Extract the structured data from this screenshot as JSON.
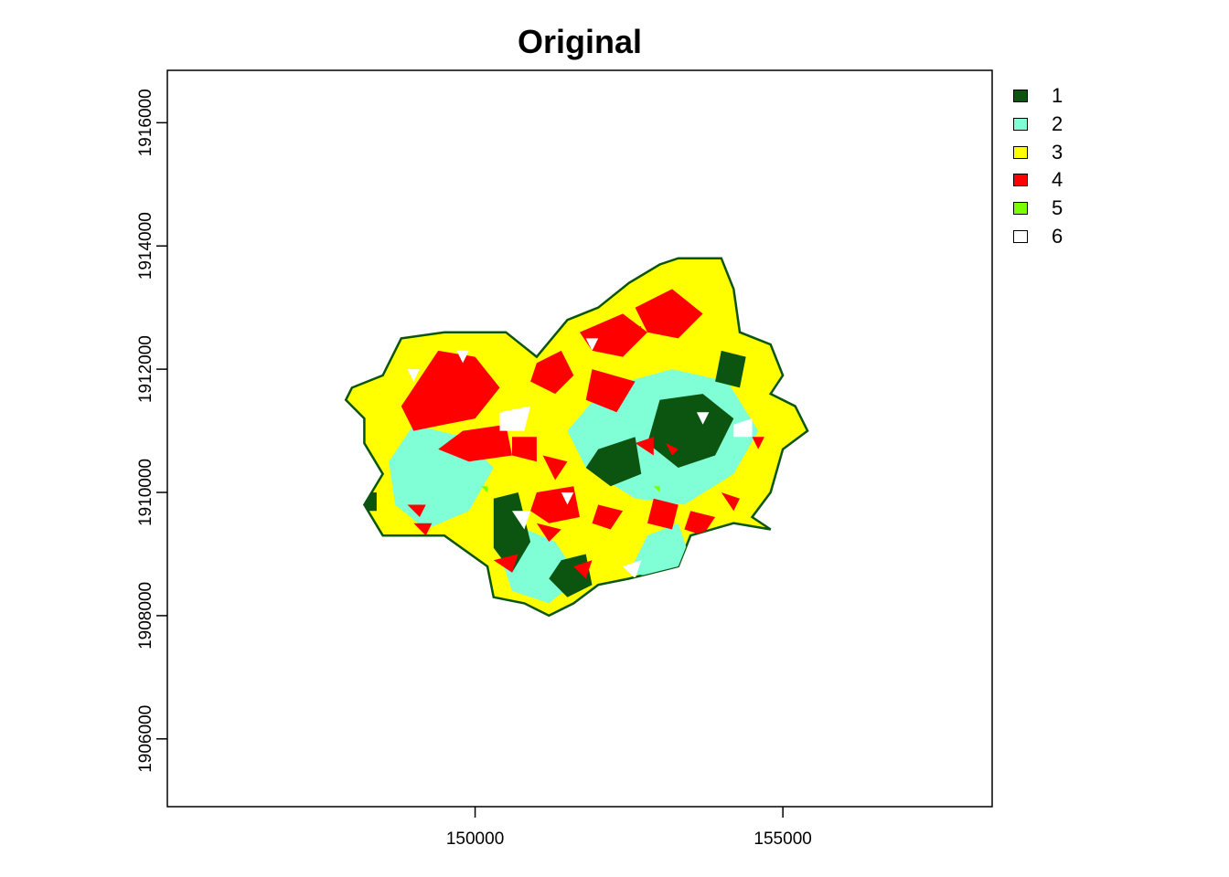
{
  "title": "Original",
  "chart_data": {
    "type": "heatmap",
    "title": "Original",
    "xlabel": "",
    "ylabel": "",
    "x_ticks": [
      150000,
      155000
    ],
    "y_ticks": [
      1906000,
      1908000,
      1910000,
      1912000,
      1914000,
      1916000
    ],
    "xlim": [
      145000,
      158400
    ],
    "ylim": [
      1904900,
      1916850
    ],
    "grid": false,
    "legend_position": "right",
    "legend": [
      {
        "label": "1",
        "color": "#0b5510"
      },
      {
        "label": "2",
        "color": "#80ffd6"
      },
      {
        "label": "3",
        "color": "#ffff00"
      },
      {
        "label": "4",
        "color": "#ff0000"
      },
      {
        "label": "5",
        "color": "#7cfc00"
      },
      {
        "label": "6",
        "color": "#ffffff"
      }
    ],
    "regions": {
      "outline": [
        [
          148000,
          1911700
        ],
        [
          148500,
          1911900
        ],
        [
          148800,
          1912500
        ],
        [
          149500,
          1912600
        ],
        [
          150500,
          1912600
        ],
        [
          151000,
          1912200
        ],
        [
          151500,
          1912800
        ],
        [
          152000,
          1913000
        ],
        [
          152500,
          1913400
        ],
        [
          153000,
          1913700
        ],
        [
          153300,
          1913800
        ],
        [
          154000,
          1913800
        ],
        [
          154200,
          1913300
        ],
        [
          154300,
          1912600
        ],
        [
          154800,
          1912400
        ],
        [
          155000,
          1911900
        ],
        [
          154800,
          1911600
        ],
        [
          155200,
          1911400
        ],
        [
          155400,
          1911000
        ],
        [
          155000,
          1910700
        ],
        [
          154800,
          1910000
        ],
        [
          154500,
          1909600
        ],
        [
          154800,
          1909400
        ],
        [
          154200,
          1909500
        ],
        [
          153500,
          1909300
        ],
        [
          153300,
          1908800
        ],
        [
          152500,
          1908600
        ],
        [
          152000,
          1908500
        ],
        [
          151600,
          1908200
        ],
        [
          151200,
          1908000
        ],
        [
          150800,
          1908200
        ],
        [
          150300,
          1908300
        ],
        [
          150200,
          1908800
        ],
        [
          149500,
          1909300
        ],
        [
          149000,
          1909300
        ],
        [
          148500,
          1909300
        ],
        [
          148200,
          1909800
        ],
        [
          148500,
          1910300
        ],
        [
          148200,
          1910800
        ],
        [
          148200,
          1911200
        ],
        [
          147900,
          1911500
        ]
      ],
      "class2": [
        [
          [
            152100,
            1911700
          ],
          [
            153200,
            1912000
          ],
          [
            154100,
            1911800
          ],
          [
            154600,
            1911000
          ],
          [
            154200,
            1910300
          ],
          [
            153400,
            1909800
          ],
          [
            152600,
            1909900
          ],
          [
            151800,
            1910400
          ],
          [
            151500,
            1911000
          ]
        ],
        [
          [
            149000,
            1911100
          ],
          [
            149800,
            1910900
          ],
          [
            150300,
            1910400
          ],
          [
            149900,
            1909700
          ],
          [
            149200,
            1909400
          ],
          [
            148700,
            1909800
          ],
          [
            148600,
            1910500
          ]
        ],
        [
          [
            150600,
            1909500
          ],
          [
            151300,
            1909200
          ],
          [
            151700,
            1908600
          ],
          [
            151200,
            1908200
          ],
          [
            150600,
            1908400
          ],
          [
            150400,
            1909000
          ]
        ],
        [
          [
            152800,
            1909300
          ],
          [
            153300,
            1909500
          ],
          [
            153500,
            1908900
          ],
          [
            153000,
            1908600
          ],
          [
            152500,
            1908700
          ]
        ]
      ],
      "class1": [
        [
          [
            153000,
            1911500
          ],
          [
            153700,
            1911600
          ],
          [
            154200,
            1911200
          ],
          [
            153900,
            1910600
          ],
          [
            153300,
            1910400
          ],
          [
            152800,
            1910800
          ]
        ],
        [
          [
            154000,
            1912300
          ],
          [
            154400,
            1912200
          ],
          [
            154300,
            1911700
          ],
          [
            153900,
            1911800
          ]
        ],
        [
          [
            150300,
            1909900
          ],
          [
            150700,
            1910000
          ],
          [
            150900,
            1909200
          ],
          [
            150600,
            1908700
          ],
          [
            150300,
            1909100
          ]
        ],
        [
          [
            151400,
            1908900
          ],
          [
            151800,
            1909000
          ],
          [
            151900,
            1908500
          ],
          [
            151500,
            1908300
          ],
          [
            151200,
            1908600
          ]
        ],
        [
          [
            152000,
            1910700
          ],
          [
            152600,
            1910900
          ],
          [
            152700,
            1910300
          ],
          [
            152200,
            1910100
          ],
          [
            151800,
            1910400
          ]
        ],
        [
          [
            148200,
            1910000
          ],
          [
            148400,
            1910000
          ],
          [
            148400,
            1909700
          ],
          [
            148200,
            1909700
          ]
        ]
      ],
      "class4": [
        [
          [
            148800,
            1911400
          ],
          [
            149400,
            1912300
          ],
          [
            150000,
            1912200
          ],
          [
            150400,
            1911700
          ],
          [
            150000,
            1911200
          ],
          [
            149500,
            1911100
          ],
          [
            149000,
            1911000
          ]
        ],
        [
          [
            151000,
            1912100
          ],
          [
            151400,
            1912300
          ],
          [
            151600,
            1911900
          ],
          [
            151300,
            1911600
          ],
          [
            150900,
            1911800
          ]
        ],
        [
          [
            151700,
            1912600
          ],
          [
            152400,
            1912900
          ],
          [
            152800,
            1912600
          ],
          [
            152400,
            1912200
          ],
          [
            151900,
            1912300
          ]
        ],
        [
          [
            152600,
            1913000
          ],
          [
            153200,
            1913300
          ],
          [
            153700,
            1912900
          ],
          [
            153300,
            1912500
          ],
          [
            152800,
            1912600
          ]
        ],
        [
          [
            151900,
            1912000
          ],
          [
            152600,
            1911800
          ],
          [
            152300,
            1911300
          ],
          [
            151800,
            1911500
          ]
        ],
        [
          [
            149800,
            1911000
          ],
          [
            150500,
            1911100
          ],
          [
            150600,
            1910600
          ],
          [
            149900,
            1910500
          ],
          [
            149400,
            1910700
          ]
        ],
        [
          [
            150600,
            1910900
          ],
          [
            151000,
            1910900
          ],
          [
            151000,
            1910500
          ],
          [
            150600,
            1910600
          ]
        ],
        [
          [
            151100,
            1910600
          ],
          [
            151500,
            1910500
          ],
          [
            151300,
            1910200
          ]
        ],
        [
          [
            151000,
            1910000
          ],
          [
            151600,
            1910100
          ],
          [
            151700,
            1909600
          ],
          [
            151200,
            1909500
          ],
          [
            150900,
            1909700
          ]
        ],
        [
          [
            152000,
            1909800
          ],
          [
            152400,
            1909700
          ],
          [
            152200,
            1909400
          ],
          [
            151900,
            1909500
          ]
        ],
        [
          [
            152900,
            1909900
          ],
          [
            153300,
            1909800
          ],
          [
            153200,
            1909400
          ],
          [
            152800,
            1909500
          ]
        ],
        [
          [
            153500,
            1909700
          ],
          [
            153900,
            1909600
          ],
          [
            153700,
            1909300
          ],
          [
            153400,
            1909400
          ]
        ],
        [
          [
            154000,
            1910000
          ],
          [
            154300,
            1909900
          ],
          [
            154200,
            1909700
          ]
        ],
        [
          [
            151000,
            1909500
          ],
          [
            151400,
            1909400
          ],
          [
            151200,
            1909200
          ]
        ],
        [
          [
            151600,
            1908800
          ],
          [
            151900,
            1908900
          ],
          [
            151800,
            1908600
          ]
        ],
        [
          [
            150300,
            1908900
          ],
          [
            150700,
            1909000
          ],
          [
            150600,
            1908700
          ]
        ],
        [
          [
            149000,
            1909500
          ],
          [
            149300,
            1909500
          ],
          [
            149200,
            1909300
          ]
        ],
        [
          [
            148900,
            1909800
          ],
          [
            149200,
            1909800
          ],
          [
            149100,
            1909600
          ]
        ],
        [
          [
            152600,
            1910800
          ],
          [
            152900,
            1910900
          ],
          [
            152900,
            1910600
          ]
        ],
        [
          [
            153100,
            1910800
          ],
          [
            153300,
            1910700
          ],
          [
            153200,
            1910600
          ]
        ],
        [
          [
            154500,
            1910900
          ],
          [
            154700,
            1910900
          ],
          [
            154600,
            1910700
          ]
        ],
        [
          [
            152400,
            1912600
          ],
          [
            152700,
            1912700
          ],
          [
            152600,
            1912400
          ]
        ]
      ],
      "class6": [
        [
          [
            150400,
            1911300
          ],
          [
            150900,
            1911400
          ],
          [
            150800,
            1911000
          ],
          [
            150400,
            1911000
          ]
        ],
        [
          [
            148900,
            1912000
          ],
          [
            149100,
            1912000
          ],
          [
            149000,
            1911800
          ]
        ],
        [
          [
            149700,
            1912300
          ],
          [
            149900,
            1912300
          ],
          [
            149800,
            1912100
          ]
        ],
        [
          [
            154200,
            1911100
          ],
          [
            154500,
            1911200
          ],
          [
            154500,
            1910900
          ],
          [
            154200,
            1910900
          ]
        ],
        [
          [
            153600,
            1911300
          ],
          [
            153800,
            1911300
          ],
          [
            153700,
            1911100
          ]
        ],
        [
          [
            152400,
            1908800
          ],
          [
            152700,
            1908900
          ],
          [
            152600,
            1908600
          ]
        ],
        [
          [
            150600,
            1909700
          ],
          [
            150900,
            1909700
          ],
          [
            150800,
            1909400
          ]
        ],
        [
          [
            151400,
            1910000
          ],
          [
            151600,
            1910000
          ],
          [
            151500,
            1909800
          ]
        ],
        [
          [
            151800,
            1912500
          ],
          [
            152000,
            1912500
          ],
          [
            151900,
            1912300
          ]
        ]
      ],
      "class5": [
        [
          [
            150100,
            1910100
          ],
          [
            150200,
            1910100
          ],
          [
            150200,
            1910000
          ]
        ],
        [
          [
            152900,
            1910100
          ],
          [
            153000,
            1910100
          ],
          [
            153000,
            1910000
          ]
        ]
      ]
    }
  }
}
